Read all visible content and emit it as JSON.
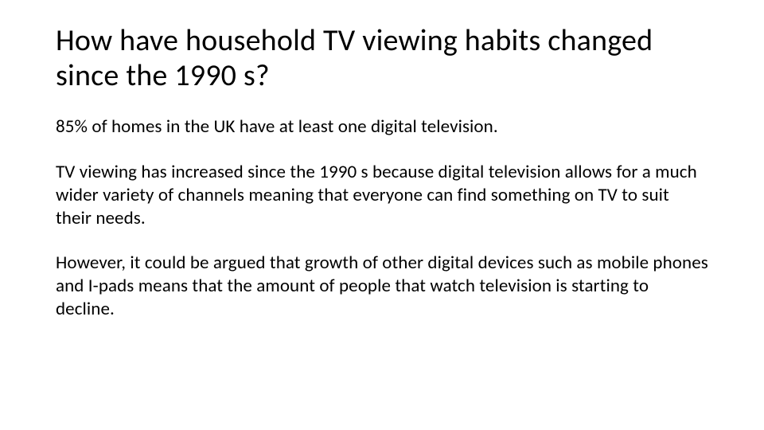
{
  "slide": {
    "title": "How have household TV viewing habits changed since the 1990 s?",
    "paragraphs": [
      "85% of homes in the UK have at least one digital television.",
      "TV viewing has increased since the 1990 s because digital television allows for a much wider variety of channels meaning that everyone can find something on TV to suit their needs.",
      "However, it could be argued that growth of other digital devices such as mobile phones and I-pads means that the amount of people that watch television is starting to decline."
    ]
  },
  "styles": {
    "background_color": "#ffffff",
    "text_color": "#000000",
    "title_fontsize": 38,
    "title_fontweight": 400,
    "body_fontsize": 23,
    "body_fontweight": 400,
    "font_family": "Calibri"
  }
}
